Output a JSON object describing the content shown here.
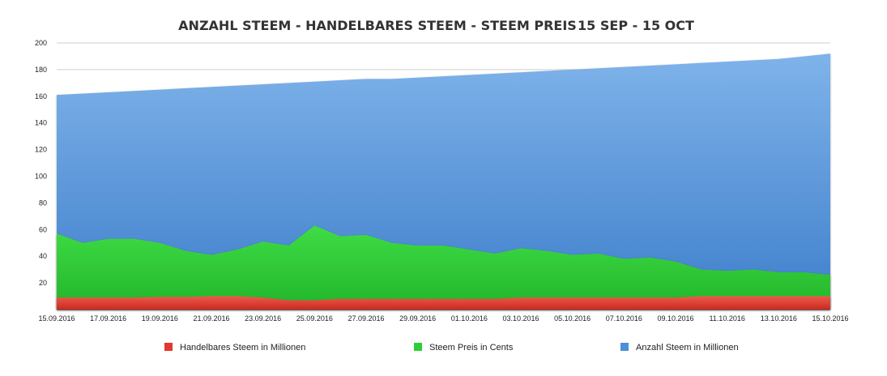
{
  "chart_data": {
    "type": "area",
    "stacked": false,
    "title": "ANZAHL STEEM - HANDELBARES STEEM - STEEM PREIS",
    "subtitle": "15 SEP - 15 OCT",
    "xlabel": "",
    "ylabel": "",
    "ylim": [
      0,
      200
    ],
    "yticks": [
      20,
      40,
      60,
      80,
      100,
      120,
      140,
      160,
      180,
      200
    ],
    "grid": true,
    "legend_position": "bottom",
    "x": [
      "15.09.2016",
      "16.09.2016",
      "17.09.2016",
      "18.09.2016",
      "19.09.2016",
      "20.09.2016",
      "21.09.2016",
      "22.09.2016",
      "23.09.2016",
      "24.09.2016",
      "25.09.2016",
      "26.09.2016",
      "27.09.2016",
      "28.09.2016",
      "29.09.2016",
      "30.09.2016",
      "01.10.2016",
      "02.10.2016",
      "03.10.2016",
      "04.10.2016",
      "05.10.2016",
      "06.10.2016",
      "07.10.2016",
      "08.10.2016",
      "09.10.2016",
      "10.10.2016",
      "11.10.2016",
      "12.10.2016",
      "13.10.2016",
      "14.10.2016",
      "15.10.2016"
    ],
    "x_tick_labels": [
      "15.09.2016",
      "17.09.2016",
      "19.09.2016",
      "21.09.2016",
      "23.09.2016",
      "25.09.2016",
      "27.09.2016",
      "29.09.2016",
      "01.10.2016",
      "03.10.2016",
      "05.10.2016",
      "07.10.2016",
      "09.10.2016",
      "11.10.2016",
      "13.10.2016",
      "15.10.2016"
    ],
    "series": [
      {
        "name": "Anzahl Steem in Millionen",
        "color": "#4f8fd6",
        "values": [
          161,
          162,
          163,
          164,
          165,
          166,
          167,
          168,
          169,
          170,
          171,
          172,
          173,
          173,
          174,
          175,
          176,
          177,
          178,
          179,
          180,
          181,
          182,
          183,
          184,
          185,
          186,
          187,
          188,
          190,
          192
        ]
      },
      {
        "name": "Steem Preis in Cents",
        "color": "#2ecc35",
        "values": [
          57,
          50,
          53,
          53,
          50,
          44,
          41,
          45,
          51,
          48,
          63,
          55,
          56,
          50,
          48,
          48,
          45,
          42,
          46,
          44,
          41,
          42,
          38,
          39,
          36,
          30,
          29,
          30,
          28,
          28,
          26
        ]
      },
      {
        "name": "Handelbares Steem in Millionen",
        "color": "#e0392e",
        "values": [
          9,
          9,
          9,
          9,
          9.5,
          9.5,
          10,
          10,
          9,
          7,
          7,
          8,
          8,
          8,
          8,
          8,
          8,
          8,
          9,
          9,
          9,
          9,
          9,
          9,
          9,
          10,
          10,
          10,
          10,
          10,
          10
        ]
      }
    ]
  },
  "legend": [
    {
      "label": "Handelbares Steem in Millionen",
      "color": "#e0392e"
    },
    {
      "label": "Steem Preis in Cents",
      "color": "#2ecc35"
    },
    {
      "label": "Anzahl Steem in Millionen",
      "color": "#4f8fd6"
    }
  ]
}
